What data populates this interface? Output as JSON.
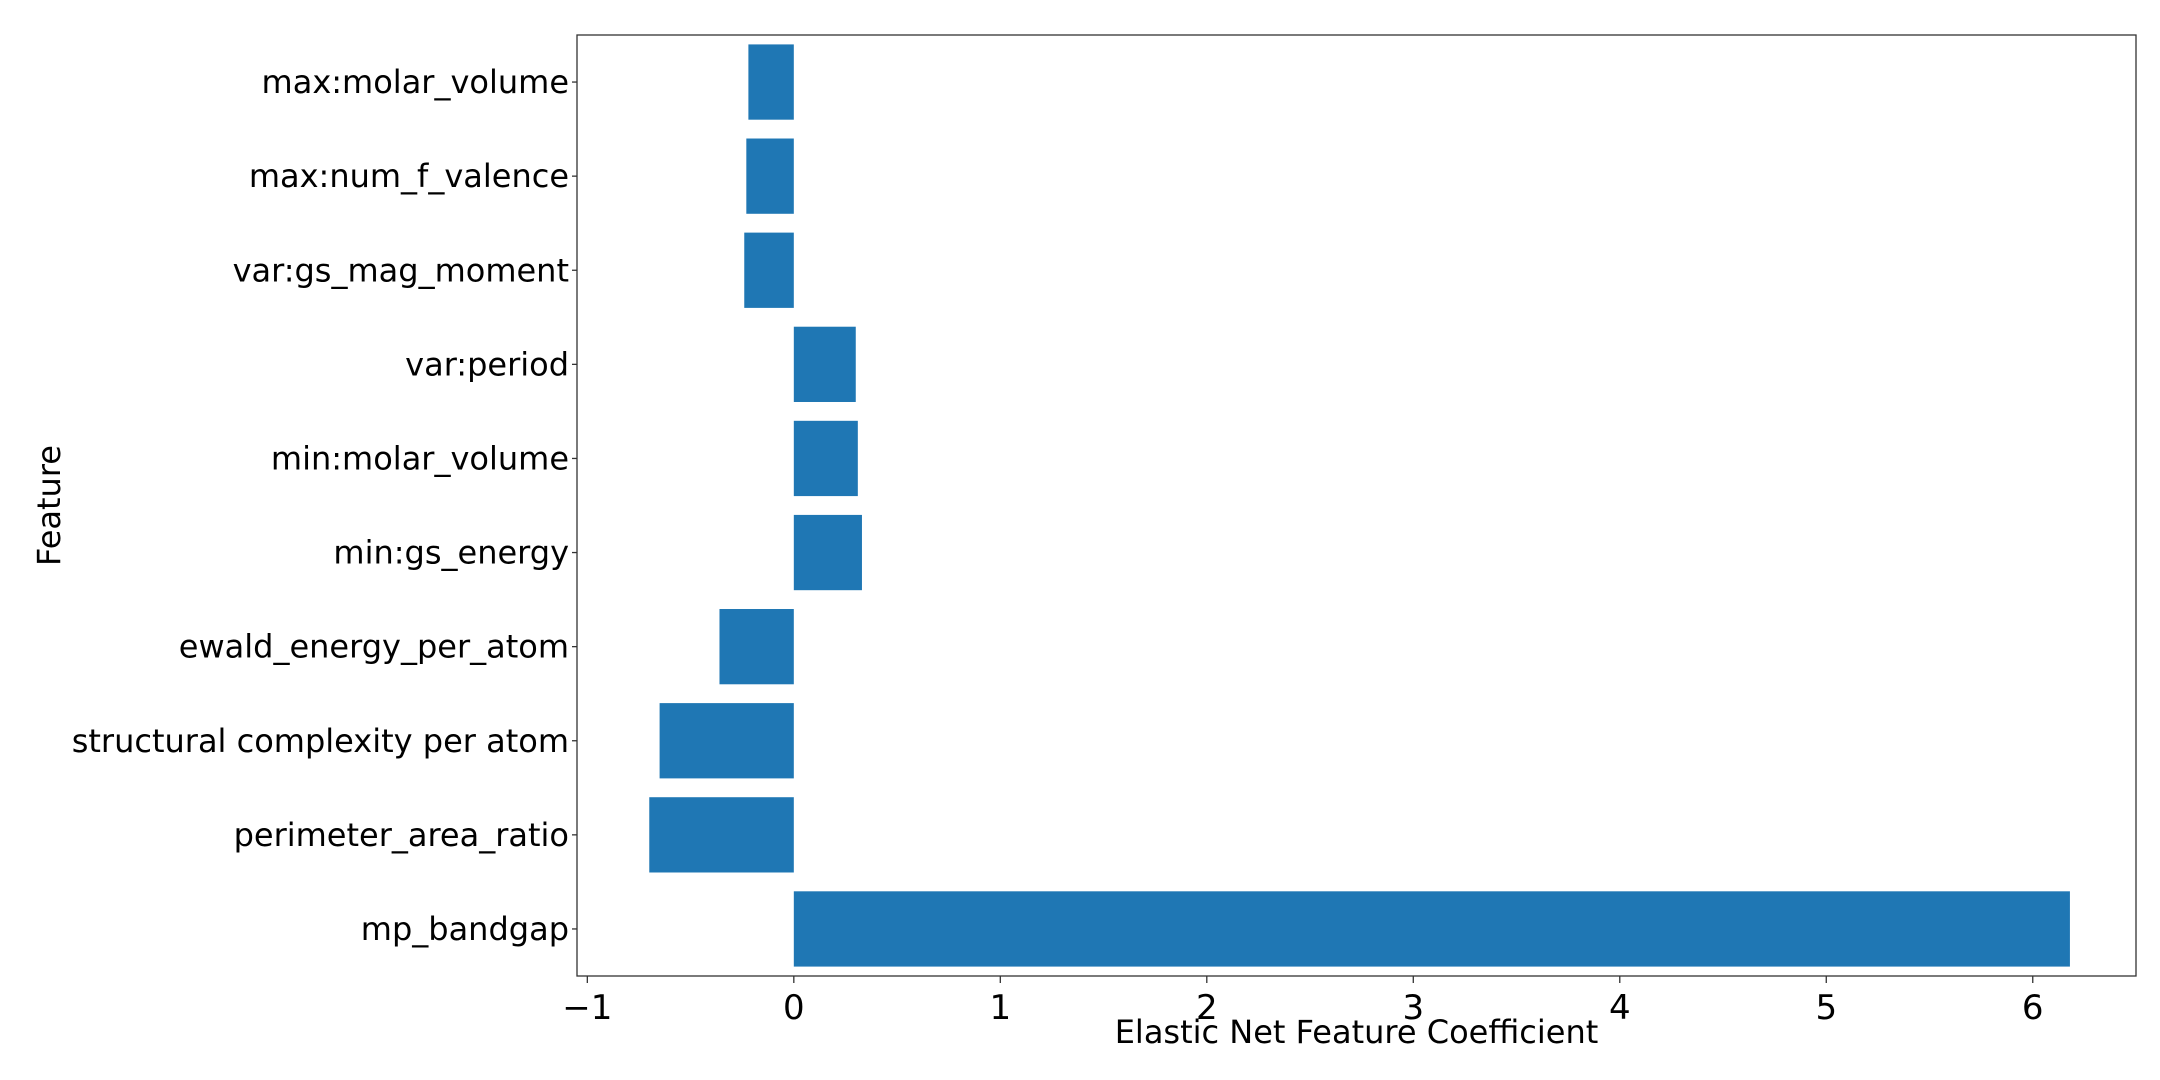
{
  "chart_data": {
    "type": "bar",
    "orientation": "horizontal",
    "xlabel": "Elastic Net Feature Coefficient",
    "ylabel": "Feature",
    "xlim": [
      -1.05,
      6.5
    ],
    "xticks": [
      -1,
      0,
      1,
      2,
      3,
      4,
      5,
      6
    ],
    "xtick_labels": [
      "−1",
      "0",
      "1",
      "2",
      "3",
      "4",
      "5",
      "6"
    ],
    "grid": false,
    "bar_color": "#1f77b4",
    "categories": [
      "max:molar_volume",
      "max:num_f_valence",
      "var:gs_mag_moment",
      "var:period",
      "min:molar_volume",
      "min:gs_energy",
      "ewald_energy_per_atom",
      "structural complexity per atom",
      "perimeter_area_ratio",
      "mp_bandgap"
    ],
    "values": [
      -0.22,
      -0.23,
      -0.24,
      0.3,
      0.31,
      0.33,
      -0.36,
      -0.65,
      -0.7,
      6.18
    ]
  }
}
